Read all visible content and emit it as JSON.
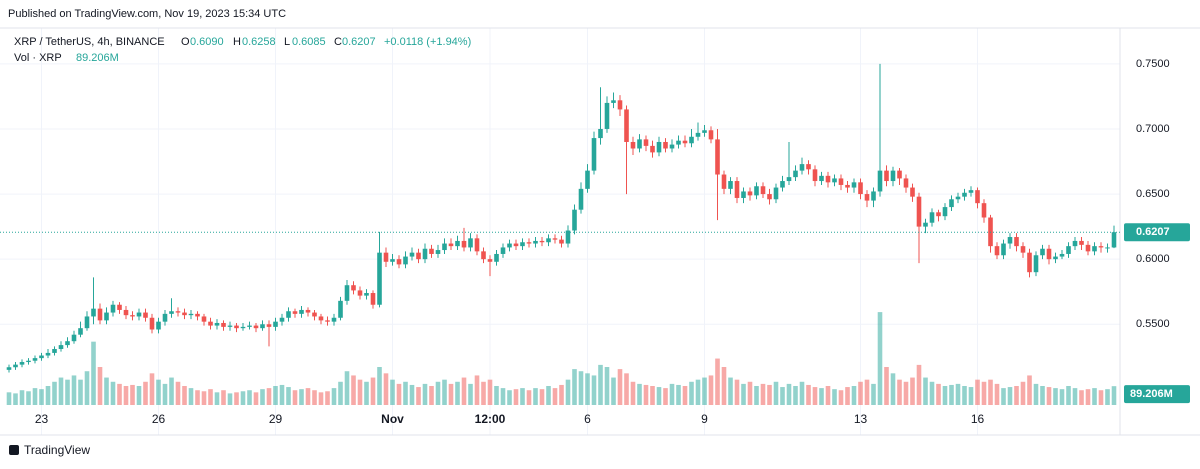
{
  "header": {
    "published": "Published on TradingView.com, Nov 19, 2023 15:34 UTC",
    "footer": "TradingView"
  },
  "legend": {
    "symbol": "XRP / TetherUS, 4h, BINANCE",
    "o_label": "O",
    "o": "0.6090",
    "h_label": "H",
    "h": "0.6258",
    "l_label": "L",
    "l": "0.6085",
    "c_label": "C",
    "c": "0.6207",
    "change": "+0.0118 (+1.94%)",
    "vol_label": "Vol · XRP",
    "vol": "89.206M"
  },
  "chart_data": {
    "type": "candlestick",
    "up_color": "#26a69a",
    "down_color": "#ef5350",
    "grid": true,
    "ylim": [
      0.488,
      0.776
    ],
    "yticks": [
      {
        "value": 0.55,
        "label": "0.5500"
      },
      {
        "value": 0.6,
        "label": "0.6000"
      },
      {
        "value": 0.65,
        "label": "0.6500"
      },
      {
        "value": 0.7,
        "label": "0.7000"
      },
      {
        "value": 0.75,
        "label": "0.7500"
      }
    ],
    "xticks": [
      {
        "value": 5,
        "label": "23"
      },
      {
        "value": 23,
        "label": "26"
      },
      {
        "value": 41,
        "label": "29"
      },
      {
        "value": 59,
        "label": "Nov"
      },
      {
        "value": 74,
        "label": "12:00"
      },
      {
        "value": 89,
        "label": "6"
      },
      {
        "value": 107,
        "label": "9"
      },
      {
        "value": 131,
        "label": "13"
      },
      {
        "value": 149,
        "label": "16"
      }
    ],
    "vlim": [
      0,
      900
    ],
    "last_volume_label": "89.206M",
    "open": [
      0.515,
      0.517,
      0.519,
      0.521,
      0.522,
      0.524,
      0.526,
      0.528,
      0.531,
      0.534,
      0.537,
      0.542,
      0.547,
      0.556,
      0.562,
      0.553,
      0.559,
      0.565,
      0.561,
      0.557,
      0.556,
      0.559,
      0.555,
      0.546,
      0.552,
      0.558,
      0.56,
      0.559,
      0.557,
      0.558,
      0.556,
      0.552,
      0.549,
      0.551,
      0.548,
      0.549,
      0.547,
      0.548,
      0.549,
      0.547,
      0.55,
      0.548,
      0.552,
      0.555,
      0.56,
      0.558,
      0.561,
      0.559,
      0.556,
      0.553,
      0.552,
      0.555,
      0.568,
      0.58,
      0.576,
      0.572,
      0.574,
      0.565,
      0.605,
      0.598,
      0.6,
      0.596,
      0.602,
      0.605,
      0.6,
      0.608,
      0.604,
      0.607,
      0.612,
      0.61,
      0.614,
      0.609,
      0.616,
      0.606,
      0.6,
      0.598,
      0.604,
      0.609,
      0.612,
      0.61,
      0.613,
      0.612,
      0.614,
      0.613,
      0.616,
      0.615,
      0.612,
      0.622,
      0.638,
      0.654,
      0.668,
      0.693,
      0.7,
      0.72,
      0.722,
      0.715,
      0.69,
      0.685,
      0.692,
      0.687,
      0.682,
      0.69,
      0.685,
      0.688,
      0.691,
      0.689,
      0.694,
      0.697,
      0.699,
      0.692,
      0.665,
      0.654,
      0.66,
      0.647,
      0.652,
      0.649,
      0.656,
      0.65,
      0.646,
      0.655,
      0.66,
      0.663,
      0.668,
      0.673,
      0.669,
      0.66,
      0.664,
      0.659,
      0.662,
      0.657,
      0.655,
      0.659,
      0.65,
      0.645,
      0.652,
      0.668,
      0.66,
      0.668,
      0.662,
      0.655,
      0.648,
      0.625,
      0.628,
      0.636,
      0.633,
      0.64,
      0.646,
      0.648,
      0.651,
      0.653,
      0.643,
      0.632,
      0.61,
      0.603,
      0.612,
      0.617,
      0.61,
      0.605,
      0.59,
      0.603,
      0.608,
      0.6,
      0.602,
      0.604,
      0.61,
      0.614,
      0.611,
      0.606,
      0.61,
      0.609,
      0.609
    ],
    "high": [
      0.519,
      0.521,
      0.523,
      0.524,
      0.526,
      0.528,
      0.531,
      0.533,
      0.537,
      0.54,
      0.545,
      0.552,
      0.56,
      0.586,
      0.566,
      0.563,
      0.568,
      0.567,
      0.564,
      0.56,
      0.562,
      0.562,
      0.558,
      0.555,
      0.561,
      0.57,
      0.563,
      0.562,
      0.561,
      0.56,
      0.558,
      0.555,
      0.554,
      0.553,
      0.552,
      0.551,
      0.551,
      0.552,
      0.551,
      0.553,
      0.553,
      0.555,
      0.558,
      0.563,
      0.562,
      0.564,
      0.563,
      0.561,
      0.558,
      0.556,
      0.558,
      0.571,
      0.584,
      0.583,
      0.579,
      0.577,
      0.576,
      0.621,
      0.609,
      0.604,
      0.603,
      0.606,
      0.609,
      0.608,
      0.612,
      0.611,
      0.611,
      0.616,
      0.616,
      0.618,
      0.624,
      0.62,
      0.619,
      0.609,
      0.603,
      0.607,
      0.612,
      0.615,
      0.615,
      0.616,
      0.616,
      0.617,
      0.617,
      0.619,
      0.619,
      0.618,
      0.626,
      0.642,
      0.659,
      0.673,
      0.698,
      0.732,
      0.725,
      0.728,
      0.726,
      0.718,
      0.694,
      0.696,
      0.695,
      0.691,
      0.694,
      0.693,
      0.692,
      0.695,
      0.695,
      0.7,
      0.705,
      0.703,
      0.702,
      0.7,
      0.668,
      0.663,
      0.663,
      0.655,
      0.655,
      0.659,
      0.659,
      0.654,
      0.658,
      0.664,
      0.69,
      0.672,
      0.678,
      0.676,
      0.672,
      0.667,
      0.667,
      0.665,
      0.665,
      0.66,
      0.662,
      0.662,
      0.653,
      0.655,
      0.75,
      0.672,
      0.671,
      0.67,
      0.665,
      0.658,
      0.651,
      0.631,
      0.639,
      0.638,
      0.643,
      0.649,
      0.651,
      0.654,
      0.656,
      0.655,
      0.646,
      0.634,
      0.613,
      0.615,
      0.62,
      0.62,
      0.613,
      0.608,
      0.606,
      0.611,
      0.611,
      0.605,
      0.607,
      0.613,
      0.617,
      0.617,
      0.614,
      0.613,
      0.613,
      0.612,
      0.6258
    ],
    "low": [
      0.513,
      0.515,
      0.517,
      0.519,
      0.52,
      0.522,
      0.524,
      0.526,
      0.529,
      0.532,
      0.535,
      0.54,
      0.545,
      0.55,
      0.55,
      0.55,
      0.556,
      0.558,
      0.554,
      0.553,
      0.553,
      0.552,
      0.543,
      0.543,
      0.549,
      0.555,
      0.556,
      0.554,
      0.554,
      0.553,
      0.549,
      0.546,
      0.546,
      0.545,
      0.545,
      0.544,
      0.545,
      0.546,
      0.544,
      0.545,
      0.533,
      0.545,
      0.549,
      0.552,
      0.555,
      0.555,
      0.556,
      0.553,
      0.55,
      0.549,
      0.549,
      0.553,
      0.565,
      0.573,
      0.569,
      0.569,
      0.562,
      0.563,
      0.594,
      0.595,
      0.593,
      0.593,
      0.599,
      0.597,
      0.597,
      0.601,
      0.601,
      0.604,
      0.607,
      0.607,
      0.606,
      0.606,
      0.603,
      0.597,
      0.587,
      0.595,
      0.601,
      0.606,
      0.607,
      0.607,
      0.609,
      0.609,
      0.61,
      0.61,
      0.612,
      0.609,
      0.609,
      0.619,
      0.635,
      0.651,
      0.665,
      0.688,
      0.697,
      0.716,
      0.71,
      0.65,
      0.68,
      0.682,
      0.683,
      0.678,
      0.679,
      0.682,
      0.682,
      0.685,
      0.686,
      0.686,
      0.691,
      0.694,
      0.689,
      0.63,
      0.65,
      0.65,
      0.643,
      0.643,
      0.645,
      0.646,
      0.647,
      0.642,
      0.643,
      0.652,
      0.657,
      0.66,
      0.665,
      0.665,
      0.656,
      0.657,
      0.655,
      0.656,
      0.653,
      0.651,
      0.651,
      0.646,
      0.64,
      0.64,
      0.648,
      0.656,
      0.656,
      0.657,
      0.651,
      0.644,
      0.597,
      0.62,
      0.625,
      0.629,
      0.63,
      0.637,
      0.643,
      0.645,
      0.648,
      0.639,
      0.628,
      0.605,
      0.6,
      0.6,
      0.608,
      0.606,
      0.601,
      0.586,
      0.587,
      0.6,
      0.596,
      0.597,
      0.6,
      0.601,
      0.607,
      0.607,
      0.603,
      0.603,
      0.605,
      0.605,
      0.6085
    ],
    "close": [
      0.517,
      0.519,
      0.521,
      0.522,
      0.524,
      0.526,
      0.528,
      0.531,
      0.534,
      0.537,
      0.542,
      0.547,
      0.556,
      0.562,
      0.553,
      0.559,
      0.565,
      0.561,
      0.557,
      0.556,
      0.559,
      0.555,
      0.546,
      0.552,
      0.558,
      0.56,
      0.559,
      0.557,
      0.558,
      0.556,
      0.552,
      0.549,
      0.551,
      0.548,
      0.549,
      0.547,
      0.548,
      0.549,
      0.547,
      0.55,
      0.548,
      0.552,
      0.555,
      0.56,
      0.558,
      0.561,
      0.559,
      0.556,
      0.553,
      0.552,
      0.555,
      0.568,
      0.58,
      0.576,
      0.572,
      0.574,
      0.565,
      0.605,
      0.598,
      0.6,
      0.596,
      0.602,
      0.605,
      0.6,
      0.608,
      0.604,
      0.607,
      0.612,
      0.61,
      0.614,
      0.609,
      0.616,
      0.606,
      0.6,
      0.598,
      0.604,
      0.609,
      0.612,
      0.61,
      0.613,
      0.612,
      0.614,
      0.613,
      0.616,
      0.615,
      0.612,
      0.622,
      0.638,
      0.654,
      0.668,
      0.693,
      0.7,
      0.72,
      0.722,
      0.715,
      0.69,
      0.685,
      0.692,
      0.687,
      0.682,
      0.69,
      0.685,
      0.688,
      0.691,
      0.689,
      0.694,
      0.697,
      0.699,
      0.692,
      0.665,
      0.654,
      0.66,
      0.647,
      0.652,
      0.649,
      0.656,
      0.65,
      0.646,
      0.655,
      0.66,
      0.663,
      0.668,
      0.673,
      0.669,
      0.66,
      0.664,
      0.659,
      0.662,
      0.657,
      0.655,
      0.659,
      0.65,
      0.645,
      0.652,
      0.668,
      0.66,
      0.668,
      0.662,
      0.655,
      0.648,
      0.625,
      0.628,
      0.636,
      0.633,
      0.64,
      0.646,
      0.648,
      0.651,
      0.653,
      0.643,
      0.632,
      0.61,
      0.603,
      0.612,
      0.617,
      0.61,
      0.605,
      0.59,
      0.603,
      0.608,
      0.6,
      0.602,
      0.604,
      0.61,
      0.614,
      0.611,
      0.606,
      0.61,
      0.609,
      0.609,
      0.6207
    ],
    "volume": [
      60,
      55,
      70,
      65,
      80,
      75,
      90,
      110,
      130,
      120,
      140,
      120,
      160,
      300,
      180,
      130,
      110,
      100,
      90,
      95,
      90,
      110,
      150,
      120,
      100,
      130,
      110,
      90,
      80,
      70,
      65,
      75,
      60,
      70,
      55,
      60,
      65,
      70,
      60,
      75,
      80,
      90,
      95,
      85,
      70,
      75,
      80,
      70,
      60,
      65,
      80,
      110,
      160,
      140,
      120,
      110,
      130,
      180,
      150,
      120,
      100,
      110,
      95,
      85,
      100,
      90,
      110,
      120,
      100,
      110,
      130,
      100,
      140,
      110,
      120,
      90,
      80,
      70,
      75,
      80,
      70,
      80,
      75,
      90,
      80,
      95,
      120,
      170,
      160,
      150,
      140,
      190,
      180,
      130,
      170,
      150,
      110,
      100,
      95,
      90,
      85,
      80,
      100,
      95,
      90,
      110,
      120,
      130,
      140,
      220,
      180,
      130,
      120,
      100,
      110,
      90,
      100,
      95,
      110,
      85,
      100,
      90,
      110,
      95,
      85,
      80,
      90,
      75,
      70,
      85,
      90,
      110,
      120,
      100,
      440,
      180,
      150,
      120,
      110,
      130,
      190,
      130,
      110,
      100,
      90,
      95,
      100,
      90,
      85,
      120,
      110,
      120,
      100,
      80,
      85,
      90,
      110,
      140,
      100,
      90,
      85,
      80,
      75,
      90,
      80,
      70,
      75,
      80,
      70,
      75,
      89.206
    ]
  }
}
